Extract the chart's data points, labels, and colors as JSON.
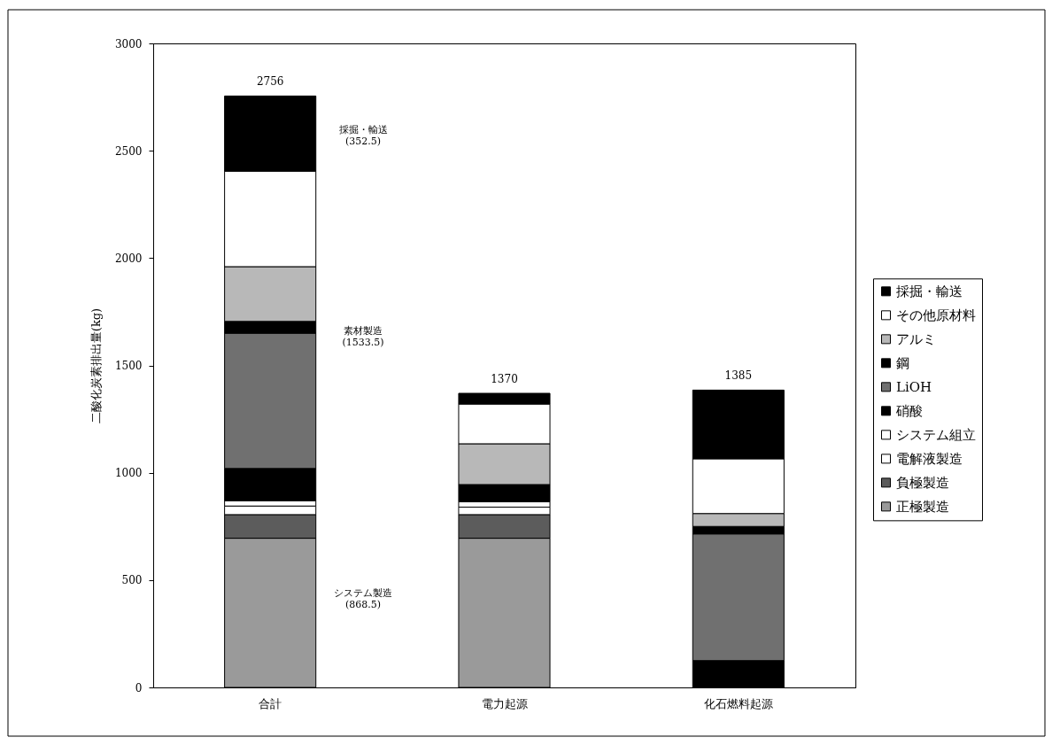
{
  "chart_data": {
    "type": "bar",
    "stacked": true,
    "categories": [
      "合計",
      "電力起源",
      "化石燃料起源"
    ],
    "series": [
      {
        "name": "正極製造",
        "color": "#9a9a9a",
        "values": [
          695,
          695,
          null
        ]
      },
      {
        "name": "負極製造",
        "color": "#5c5c5c",
        "values": [
          110,
          110,
          null
        ]
      },
      {
        "name": "電解液製造",
        "color": "#ffffff",
        "values": [
          40,
          35,
          null
        ]
      },
      {
        "name": "システム組立",
        "color": "#ffffff",
        "values": [
          25,
          25,
          null
        ]
      },
      {
        "name": "硝酸",
        "color": "#000000",
        "values": [
          150,
          80,
          125
        ]
      },
      {
        "name": "LiOH",
        "color": "#707070",
        "values": [
          630,
          null,
          590
        ]
      },
      {
        "name": "鋼",
        "color": "#000000",
        "values": [
          55,
          null,
          35
        ]
      },
      {
        "name": "アルミ",
        "color": "#b8b8b8",
        "values": [
          255,
          190,
          60
        ]
      },
      {
        "name": "その他原材料",
        "color": "#ffffff",
        "values": [
          445,
          185,
          255
        ]
      },
      {
        "name": "採掘・輸送",
        "color": "#000000",
        "values": [
          350,
          50,
          320
        ]
      }
    ],
    "totals": [
      "2756",
      "1370",
      "1385"
    ],
    "ylabel": "二酸化炭素排出量(kg)",
    "ylim": [
      0,
      3000
    ],
    "yticks": [
      0,
      500,
      1000,
      1500,
      2000,
      2500,
      3000
    ],
    "annotations": [
      "採掘・輸送\n(352.5)",
      "素材製造\n(1533.5)",
      "システム製造\n(868.5)"
    ],
    "legend": "right",
    "grid": false
  }
}
